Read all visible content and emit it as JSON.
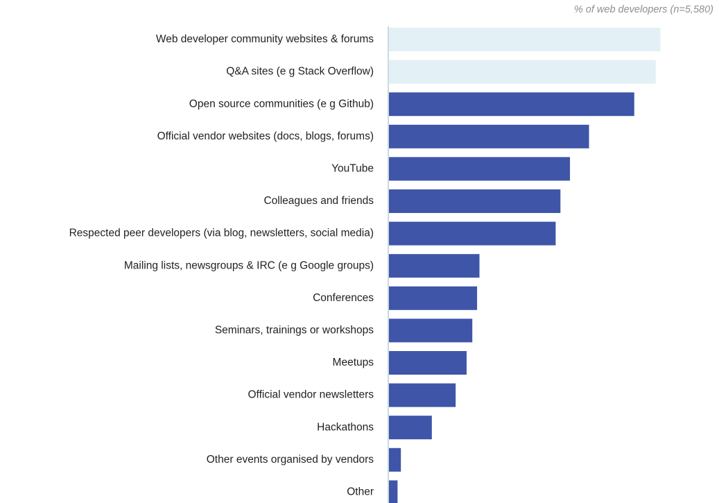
{
  "chart_data": {
    "type": "bar",
    "orientation": "horizontal",
    "subtitle": "% of web developers (n=5,580)",
    "categories": [
      "Web developer community websites & forums",
      "Q&A sites (e g  Stack Overflow)",
      "Open source communities (e g  Github)",
      "Official vendor websites (docs, blogs, forums)",
      "YouTube",
      "Colleagues and friends",
      "Respected peer developers (via blog, newsletters, social media)",
      "Mailing lists, newsgroups & IRC (e g  Google groups)",
      "Conferences",
      "Seminars, trainings or workshops",
      "Meetups",
      "Official vendor newsletters",
      "Hackathons",
      "Other events organised by vendors",
      "Other"
    ],
    "values": [
      57,
      56,
      51.5,
      42,
      38,
      36,
      35,
      19,
      18.5,
      17.5,
      16.3,
      14,
      9,
      2.5,
      1.8
    ],
    "highlighted": [
      true,
      true,
      false,
      false,
      false,
      false,
      false,
      false,
      false,
      false,
      false,
      false,
      false,
      false,
      false
    ],
    "xlim": [
      0,
      69
    ],
    "grid": false,
    "colors": {
      "bar": "#3e55a8",
      "highlight": "#e3f0f5",
      "axis": "#b9cdd6"
    }
  }
}
